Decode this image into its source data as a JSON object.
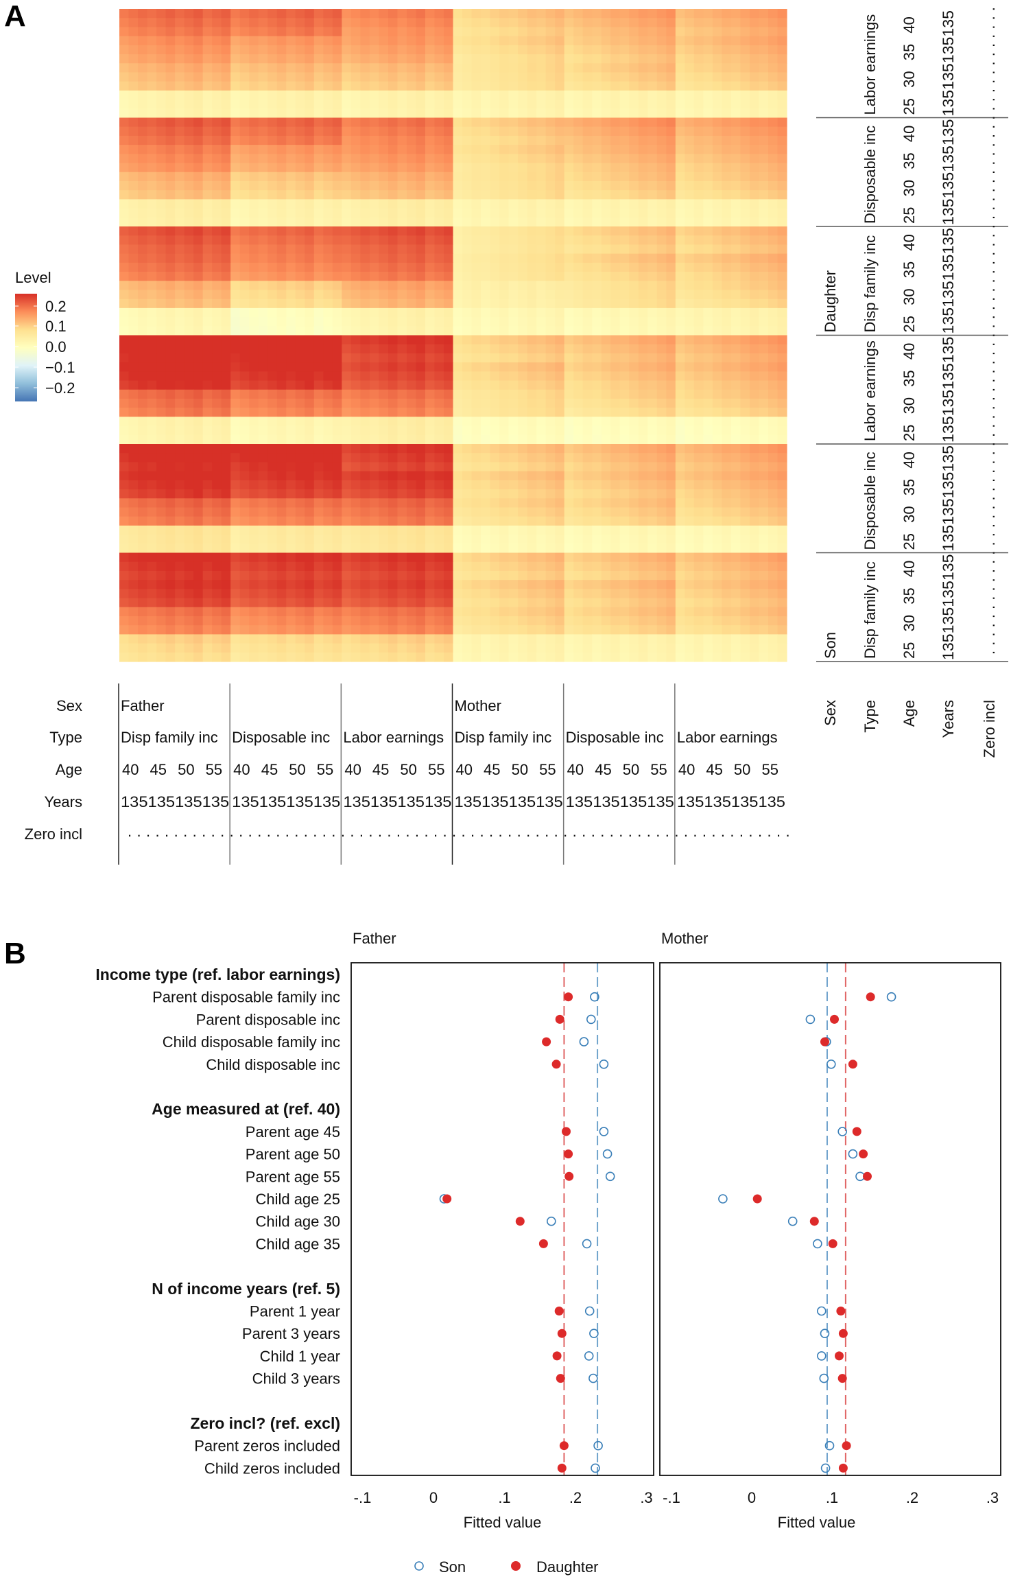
{
  "chart_data": [
    {
      "type": "heatmap",
      "panel": "A",
      "legend": {
        "title": "Level",
        "ticks": [
          "0.2",
          "0.1",
          "0.0",
          "−0.1",
          "−0.2"
        ],
        "range": [
          -0.22,
          0.22
        ],
        "palette": [
          "#4575b4",
          "#91bfdb",
          "#e0f3f8",
          "#ffffbf",
          "#fee090",
          "#fc8d59",
          "#d73027"
        ]
      },
      "x_axis": {
        "row_labels": [
          "Sex",
          "Type",
          "Age",
          "Years",
          "Zero incl"
        ],
        "sex": [
          "Father",
          "Mother"
        ],
        "type": [
          "Disp family inc",
          "Disposable inc",
          "Labor earnings"
        ],
        "age": [
          "40",
          "45",
          "50",
          "55"
        ],
        "years": [
          "1",
          "3",
          "5"
        ],
        "zero_incl_marker": "."
      },
      "y_axis": {
        "row_labels": [
          "Sex",
          "Type",
          "Age",
          "Years",
          "Zero incl"
        ],
        "sex": [
          "Son",
          "Daughter"
        ],
        "type": [
          "Disp family inc",
          "Disposable inc",
          "Labor earnings"
        ],
        "age": [
          "25",
          "30",
          "35",
          "40"
        ],
        "years": [
          "1",
          "3",
          "5"
        ],
        "zero_incl_marker": "."
      },
      "block_levels": {
        "description": "Approximate mean level per (child sex, child type, child age) row block and (parent sex, parent type) column block",
        "rows_bottom_to_top": [
          {
            "sex": "Son",
            "type": "Disp family inc",
            "age": "25",
            "father": [
              0.07,
              0.06,
              0.07
            ],
            "mother": [
              0.02,
              0.02,
              0.02
            ]
          },
          {
            "sex": "Son",
            "type": "Disp family inc",
            "age": "30",
            "father": [
              0.15,
              0.14,
              0.15
            ],
            "mother": [
              0.06,
              0.07,
              0.07
            ]
          },
          {
            "sex": "Son",
            "type": "Disp family inc",
            "age": "35",
            "father": [
              0.2,
              0.19,
              0.19
            ],
            "mother": [
              0.07,
              0.08,
              0.08
            ]
          },
          {
            "sex": "Son",
            "type": "Disp family inc",
            "age": "40",
            "father": [
              0.21,
              0.2,
              0.2
            ],
            "mother": [
              0.07,
              0.08,
              0.09
            ]
          },
          {
            "sex": "Son",
            "type": "Disposable inc",
            "age": "25",
            "father": [
              0.05,
              0.04,
              0.05
            ],
            "mother": [
              0.01,
              0.01,
              0.01
            ]
          },
          {
            "sex": "Son",
            "type": "Disposable inc",
            "age": "30",
            "father": [
              0.16,
              0.15,
              0.16
            ],
            "mother": [
              0.06,
              0.07,
              0.07
            ]
          },
          {
            "sex": "Son",
            "type": "Disposable inc",
            "age": "35",
            "father": [
              0.21,
              0.2,
              0.2
            ],
            "mother": [
              0.07,
              0.08,
              0.09
            ]
          },
          {
            "sex": "Son",
            "type": "Disposable inc",
            "age": "40",
            "father": [
              0.22,
              0.22,
              0.2
            ],
            "mother": [
              0.07,
              0.09,
              0.1
            ]
          },
          {
            "sex": "Son",
            "type": "Labor earnings",
            "age": "25",
            "father": [
              0.02,
              0.01,
              0.03
            ],
            "mother": [
              0.0,
              0.0,
              0.0
            ]
          },
          {
            "sex": "Son",
            "type": "Labor earnings",
            "age": "30",
            "father": [
              0.16,
              0.15,
              0.15
            ],
            "mother": [
              0.05,
              0.06,
              0.07
            ]
          },
          {
            "sex": "Son",
            "type": "Labor earnings",
            "age": "35",
            "father": [
              0.22,
              0.21,
              0.19
            ],
            "mother": [
              0.07,
              0.08,
              0.09
            ]
          },
          {
            "sex": "Son",
            "type": "Labor earnings",
            "age": "40",
            "father": [
              0.23,
              0.23,
              0.2
            ],
            "mother": [
              0.07,
              0.09,
              0.1
            ]
          },
          {
            "sex": "Daughter",
            "type": "Disp family inc",
            "age": "25",
            "father": [
              0.01,
              -0.01,
              0.02
            ],
            "mother": [
              0.01,
              0.01,
              0.02
            ]
          },
          {
            "sex": "Daughter",
            "type": "Disp family inc",
            "age": "30",
            "father": [
              0.1,
              0.07,
              0.11
            ],
            "mother": [
              0.03,
              0.05,
              0.06
            ]
          },
          {
            "sex": "Daughter",
            "type": "Disp family inc",
            "age": "35",
            "father": [
              0.16,
              0.14,
              0.16
            ],
            "mother": [
              0.04,
              0.07,
              0.08
            ]
          },
          {
            "sex": "Daughter",
            "type": "Disp family inc",
            "age": "40",
            "father": [
              0.18,
              0.16,
              0.18
            ],
            "mother": [
              0.04,
              0.07,
              0.08
            ]
          },
          {
            "sex": "Daughter",
            "type": "Disposable inc",
            "age": "25",
            "father": [
              0.03,
              0.02,
              0.03
            ],
            "mother": [
              0.02,
              0.02,
              0.02
            ]
          },
          {
            "sex": "Daughter",
            "type": "Disposable inc",
            "age": "30",
            "father": [
              0.1,
              0.08,
              0.1
            ],
            "mother": [
              0.05,
              0.07,
              0.07
            ]
          },
          {
            "sex": "Daughter",
            "type": "Disposable inc",
            "age": "35",
            "father": [
              0.14,
              0.12,
              0.13
            ],
            "mother": [
              0.06,
              0.09,
              0.09
            ]
          },
          {
            "sex": "Daughter",
            "type": "Disposable inc",
            "age": "40",
            "father": [
              0.17,
              0.16,
              0.15
            ],
            "mother": [
              0.07,
              0.11,
              0.11
            ]
          },
          {
            "sex": "Daughter",
            "type": "Labor earnings",
            "age": "25",
            "father": [
              0.02,
              0.02,
              0.02
            ],
            "mother": [
              0.02,
              0.02,
              0.02
            ]
          },
          {
            "sex": "Daughter",
            "type": "Labor earnings",
            "age": "30",
            "father": [
              0.1,
              0.09,
              0.09
            ],
            "mother": [
              0.05,
              0.07,
              0.07
            ]
          },
          {
            "sex": "Daughter",
            "type": "Labor earnings",
            "age": "35",
            "father": [
              0.13,
              0.12,
              0.12
            ],
            "mother": [
              0.06,
              0.08,
              0.09
            ]
          },
          {
            "sex": "Daughter",
            "type": "Labor earnings",
            "age": "40",
            "father": [
              0.16,
              0.16,
              0.14
            ],
            "mother": [
              0.07,
              0.1,
              0.1
            ]
          }
        ]
      }
    },
    {
      "type": "scatter",
      "panel": "B",
      "facets": [
        "Father",
        "Mother"
      ],
      "xlabel": "Fitted value",
      "xlim": [
        -0.1,
        0.3
      ],
      "xticks": [
        "-.1",
        "0",
        ".1",
        ".2",
        ".3"
      ],
      "xtick_values": [
        -0.1,
        0,
        0.1,
        0.2,
        0.3
      ],
      "legend": [
        {
          "name": "Son",
          "marker": "open-circle",
          "color": "#3a7fb8"
        },
        {
          "name": "Daughter",
          "marker": "filled-circle",
          "color": "#dd2a2a"
        }
      ],
      "reference_lines": {
        "Father": {
          "Son": 0.231,
          "Daughter": 0.184
        },
        "Mother": {
          "Son": 0.094,
          "Daughter": 0.117
        }
      },
      "groups": [
        {
          "header": "Income type (ref. labor earnings)",
          "rows": [
            {
              "label": "Parent disposable family inc",
              "Father": {
                "Son": 0.227,
                "Daughter": 0.19
              },
              "Mother": {
                "Son": 0.174,
                "Daughter": 0.148
              }
            },
            {
              "label": "Parent disposable inc",
              "Father": {
                "Son": 0.222,
                "Daughter": 0.178
              },
              "Mother": {
                "Son": 0.073,
                "Daughter": 0.103
              }
            },
            {
              "label": "Child disposable family inc",
              "Father": {
                "Son": 0.212,
                "Daughter": 0.159
              },
              "Mother": {
                "Son": 0.093,
                "Daughter": 0.091
              }
            },
            {
              "label": "Child disposable inc",
              "Father": {
                "Son": 0.24,
                "Daughter": 0.173
              },
              "Mother": {
                "Son": 0.099,
                "Daughter": 0.126
              }
            }
          ]
        },
        {
          "header": "Age measured at (ref. 40)",
          "rows": [
            {
              "label": "Parent age 45",
              "Father": {
                "Son": 0.24,
                "Daughter": 0.187
              },
              "Mother": {
                "Son": 0.113,
                "Daughter": 0.131
              }
            },
            {
              "label": "Parent age 50",
              "Father": {
                "Son": 0.245,
                "Daughter": 0.19
              },
              "Mother": {
                "Son": 0.126,
                "Daughter": 0.139
              }
            },
            {
              "label": "Parent age 55",
              "Father": {
                "Son": 0.249,
                "Daughter": 0.191
              },
              "Mother": {
                "Son": 0.135,
                "Daughter": 0.144
              }
            },
            {
              "label": "Child age 25",
              "Father": {
                "Son": 0.015,
                "Daughter": 0.019
              },
              "Mother": {
                "Son": -0.036,
                "Daughter": 0.007
              }
            },
            {
              "label": "Child age 30",
              "Father": {
                "Son": 0.166,
                "Daughter": 0.122
              },
              "Mother": {
                "Son": 0.051,
                "Daughter": 0.078
              }
            },
            {
              "label": "Child age 35",
              "Father": {
                "Son": 0.216,
                "Daughter": 0.155
              },
              "Mother": {
                "Son": 0.082,
                "Daughter": 0.101
              }
            }
          ]
        },
        {
          "header": "N of income years (ref. 5)",
          "rows": [
            {
              "label": "Parent 1 year",
              "Father": {
                "Son": 0.22,
                "Daughter": 0.177
              },
              "Mother": {
                "Son": 0.087,
                "Daughter": 0.111
              }
            },
            {
              "label": "Parent 3 years",
              "Father": {
                "Son": 0.226,
                "Daughter": 0.181
              },
              "Mother": {
                "Son": 0.091,
                "Daughter": 0.114
              }
            },
            {
              "label": "Child 1 year",
              "Father": {
                "Son": 0.219,
                "Daughter": 0.174
              },
              "Mother": {
                "Son": 0.087,
                "Daughter": 0.109
              }
            },
            {
              "label": "Child 3 years",
              "Father": {
                "Son": 0.225,
                "Daughter": 0.179
              },
              "Mother": {
                "Son": 0.09,
                "Daughter": 0.113
              }
            }
          ]
        },
        {
          "header": "Zero incl? (ref. excl)",
          "rows": [
            {
              "label": "Parent zeros included",
              "Father": {
                "Son": 0.232,
                "Daughter": 0.184
              },
              "Mother": {
                "Son": 0.097,
                "Daughter": 0.118
              }
            },
            {
              "label": "Child zeros included",
              "Father": {
                "Son": 0.228,
                "Daughter": 0.181
              },
              "Mother": {
                "Son": 0.092,
                "Daughter": 0.114
              }
            }
          ]
        }
      ]
    }
  ],
  "panels": {
    "a_label": "A",
    "b_label": "B"
  },
  "colors": {
    "son": "#3a7fb8",
    "daughter": "#dd2a2a",
    "son_ref": "#6fa3cc",
    "daughter_ref": "#e06666"
  }
}
